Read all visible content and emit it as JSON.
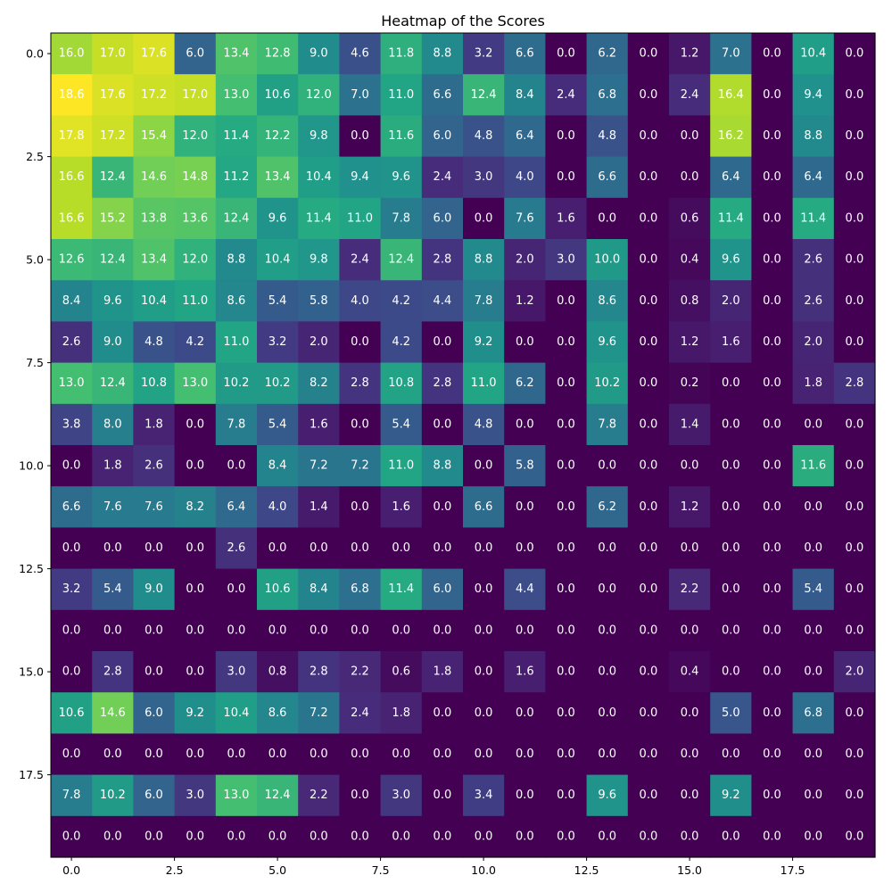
{
  "chart_data": {
    "type": "heatmap",
    "title": "Heatmap of the Scores",
    "xlabel": "",
    "ylabel": "",
    "colormap": "viridis",
    "value_range": [
      0,
      18.6
    ],
    "xlim": [
      -0.5,
      19.5
    ],
    "ylim": [
      19.5,
      -0.5
    ],
    "x_ticks": [
      0.0,
      2.5,
      5.0,
      7.5,
      10.0,
      12.5,
      15.0,
      17.5
    ],
    "x_tick_labels": [
      "0.0",
      "2.5",
      "5.0",
      "7.5",
      "10.0",
      "12.5",
      "15.0",
      "17.5"
    ],
    "y_ticks": [
      0.0,
      2.5,
      5.0,
      7.5,
      10.0,
      12.5,
      15.0,
      17.5
    ],
    "y_tick_labels": [
      "0.0",
      "2.5",
      "5.0",
      "7.5",
      "10.0",
      "12.5",
      "15.0",
      "17.5"
    ],
    "grid": false,
    "values": [
      [
        16.0,
        17.0,
        17.6,
        6.0,
        13.4,
        12.8,
        9.0,
        4.6,
        11.8,
        8.8,
        3.2,
        6.6,
        0.0,
        6.2,
        0.0,
        1.2,
        7.0,
        0.0,
        10.4,
        0.0
      ],
      [
        18.6,
        17.6,
        17.2,
        17.0,
        13.0,
        10.6,
        12.0,
        7.0,
        11.0,
        6.6,
        12.4,
        8.4,
        2.4,
        6.8,
        0.0,
        2.4,
        16.4,
        0.0,
        9.4,
        0.0
      ],
      [
        17.8,
        17.2,
        15.4,
        12.0,
        11.4,
        12.2,
        9.8,
        0.0,
        11.6,
        6.0,
        4.8,
        6.4,
        0.0,
        4.8,
        0.0,
        0.0,
        16.2,
        0.0,
        8.8,
        0.0
      ],
      [
        16.6,
        12.4,
        14.6,
        14.8,
        11.2,
        13.4,
        10.4,
        9.4,
        9.6,
        2.4,
        3.0,
        4.0,
        0.0,
        6.6,
        0.0,
        0.0,
        6.4,
        0.0,
        6.4,
        0.0
      ],
      [
        16.6,
        15.2,
        13.8,
        13.6,
        12.4,
        9.6,
        11.4,
        11.0,
        7.8,
        6.0,
        0.0,
        7.6,
        1.6,
        0.0,
        0.0,
        0.6,
        11.4,
        0.0,
        11.4,
        0.0
      ],
      [
        12.6,
        12.4,
        13.4,
        12.0,
        8.8,
        10.4,
        9.8,
        2.4,
        12.4,
        2.8,
        8.8,
        2.0,
        3.0,
        10.0,
        0.0,
        0.4,
        9.6,
        0.0,
        2.6,
        0.0
      ],
      [
        8.4,
        9.6,
        10.4,
        11.0,
        8.6,
        5.4,
        5.8,
        4.0,
        4.2,
        4.4,
        7.8,
        1.2,
        0.0,
        8.6,
        0.0,
        0.8,
        2.0,
        0.0,
        2.6,
        0.0
      ],
      [
        2.6,
        9.0,
        4.8,
        4.2,
        11.0,
        3.2,
        2.0,
        0.0,
        4.2,
        0.0,
        9.2,
        0.0,
        0.0,
        9.6,
        0.0,
        1.2,
        1.6,
        0.0,
        2.0,
        0.0
      ],
      [
        13.0,
        12.4,
        10.8,
        13.0,
        10.2,
        10.2,
        8.2,
        2.8,
        10.8,
        2.8,
        11.0,
        6.2,
        0.0,
        10.2,
        0.0,
        0.2,
        0.0,
        0.0,
        1.8,
        2.8
      ],
      [
        3.8,
        8.0,
        1.8,
        0.0,
        7.8,
        5.4,
        1.6,
        0.0,
        5.4,
        0.0,
        4.8,
        0.0,
        0.0,
        7.8,
        0.0,
        1.4,
        0.0,
        0.0,
        0.0,
        0.0
      ],
      [
        0.0,
        1.8,
        2.6,
        0.0,
        0.0,
        8.4,
        7.2,
        7.2,
        11.0,
        8.8,
        0.0,
        5.8,
        0.0,
        0.0,
        0.0,
        0.0,
        0.0,
        0.0,
        11.6,
        0.0
      ],
      [
        6.6,
        7.6,
        7.6,
        8.2,
        6.4,
        4.0,
        1.4,
        0.0,
        1.6,
        0.0,
        6.6,
        0.0,
        0.0,
        6.2,
        0.0,
        1.2,
        0.0,
        0.0,
        0.0,
        0.0
      ],
      [
        0.0,
        0.0,
        0.0,
        0.0,
        2.6,
        0.0,
        0.0,
        0.0,
        0.0,
        0.0,
        0.0,
        0.0,
        0.0,
        0.0,
        0.0,
        0.0,
        0.0,
        0.0,
        0.0,
        0.0
      ],
      [
        3.2,
        5.4,
        9.0,
        0.0,
        0.0,
        10.6,
        8.4,
        6.8,
        11.4,
        6.0,
        0.0,
        4.4,
        0.0,
        0.0,
        0.0,
        2.2,
        0.0,
        0.0,
        5.4,
        0.0
      ],
      [
        0.0,
        0.0,
        0.0,
        0.0,
        0.0,
        0.0,
        0.0,
        0.0,
        0.0,
        0.0,
        0.0,
        0.0,
        0.0,
        0.0,
        0.0,
        0.0,
        0.0,
        0.0,
        0.0,
        0.0
      ],
      [
        0.0,
        2.8,
        0.0,
        0.0,
        3.0,
        0.8,
        2.8,
        2.2,
        0.6,
        1.8,
        0.0,
        1.6,
        0.0,
        0.0,
        0.0,
        0.4,
        0.0,
        0.0,
        0.0,
        2.0
      ],
      [
        10.6,
        14.6,
        6.0,
        9.2,
        10.4,
        8.6,
        7.2,
        2.4,
        1.8,
        0.0,
        0.0,
        0.0,
        0.0,
        0.0,
        0.0,
        0.0,
        5.0,
        0.0,
        6.8,
        0.0
      ],
      [
        0.0,
        0.0,
        0.0,
        0.0,
        0.0,
        0.0,
        0.0,
        0.0,
        0.0,
        0.0,
        0.0,
        0.0,
        0.0,
        0.0,
        0.0,
        0.0,
        0.0,
        0.0,
        0.0,
        0.0
      ],
      [
        7.8,
        10.2,
        6.0,
        3.0,
        13.0,
        12.4,
        2.2,
        0.0,
        3.0,
        0.0,
        3.4,
        0.0,
        0.0,
        9.6,
        0.0,
        0.0,
        9.2,
        0.0,
        0.0,
        0.0
      ],
      [
        0.0,
        0.0,
        0.0,
        0.0,
        0.0,
        0.0,
        0.0,
        0.0,
        0.0,
        0.0,
        0.0,
        0.0,
        0.0,
        0.0,
        0.0,
        0.0,
        0.0,
        0.0,
        0.0,
        0.0
      ]
    ]
  }
}
